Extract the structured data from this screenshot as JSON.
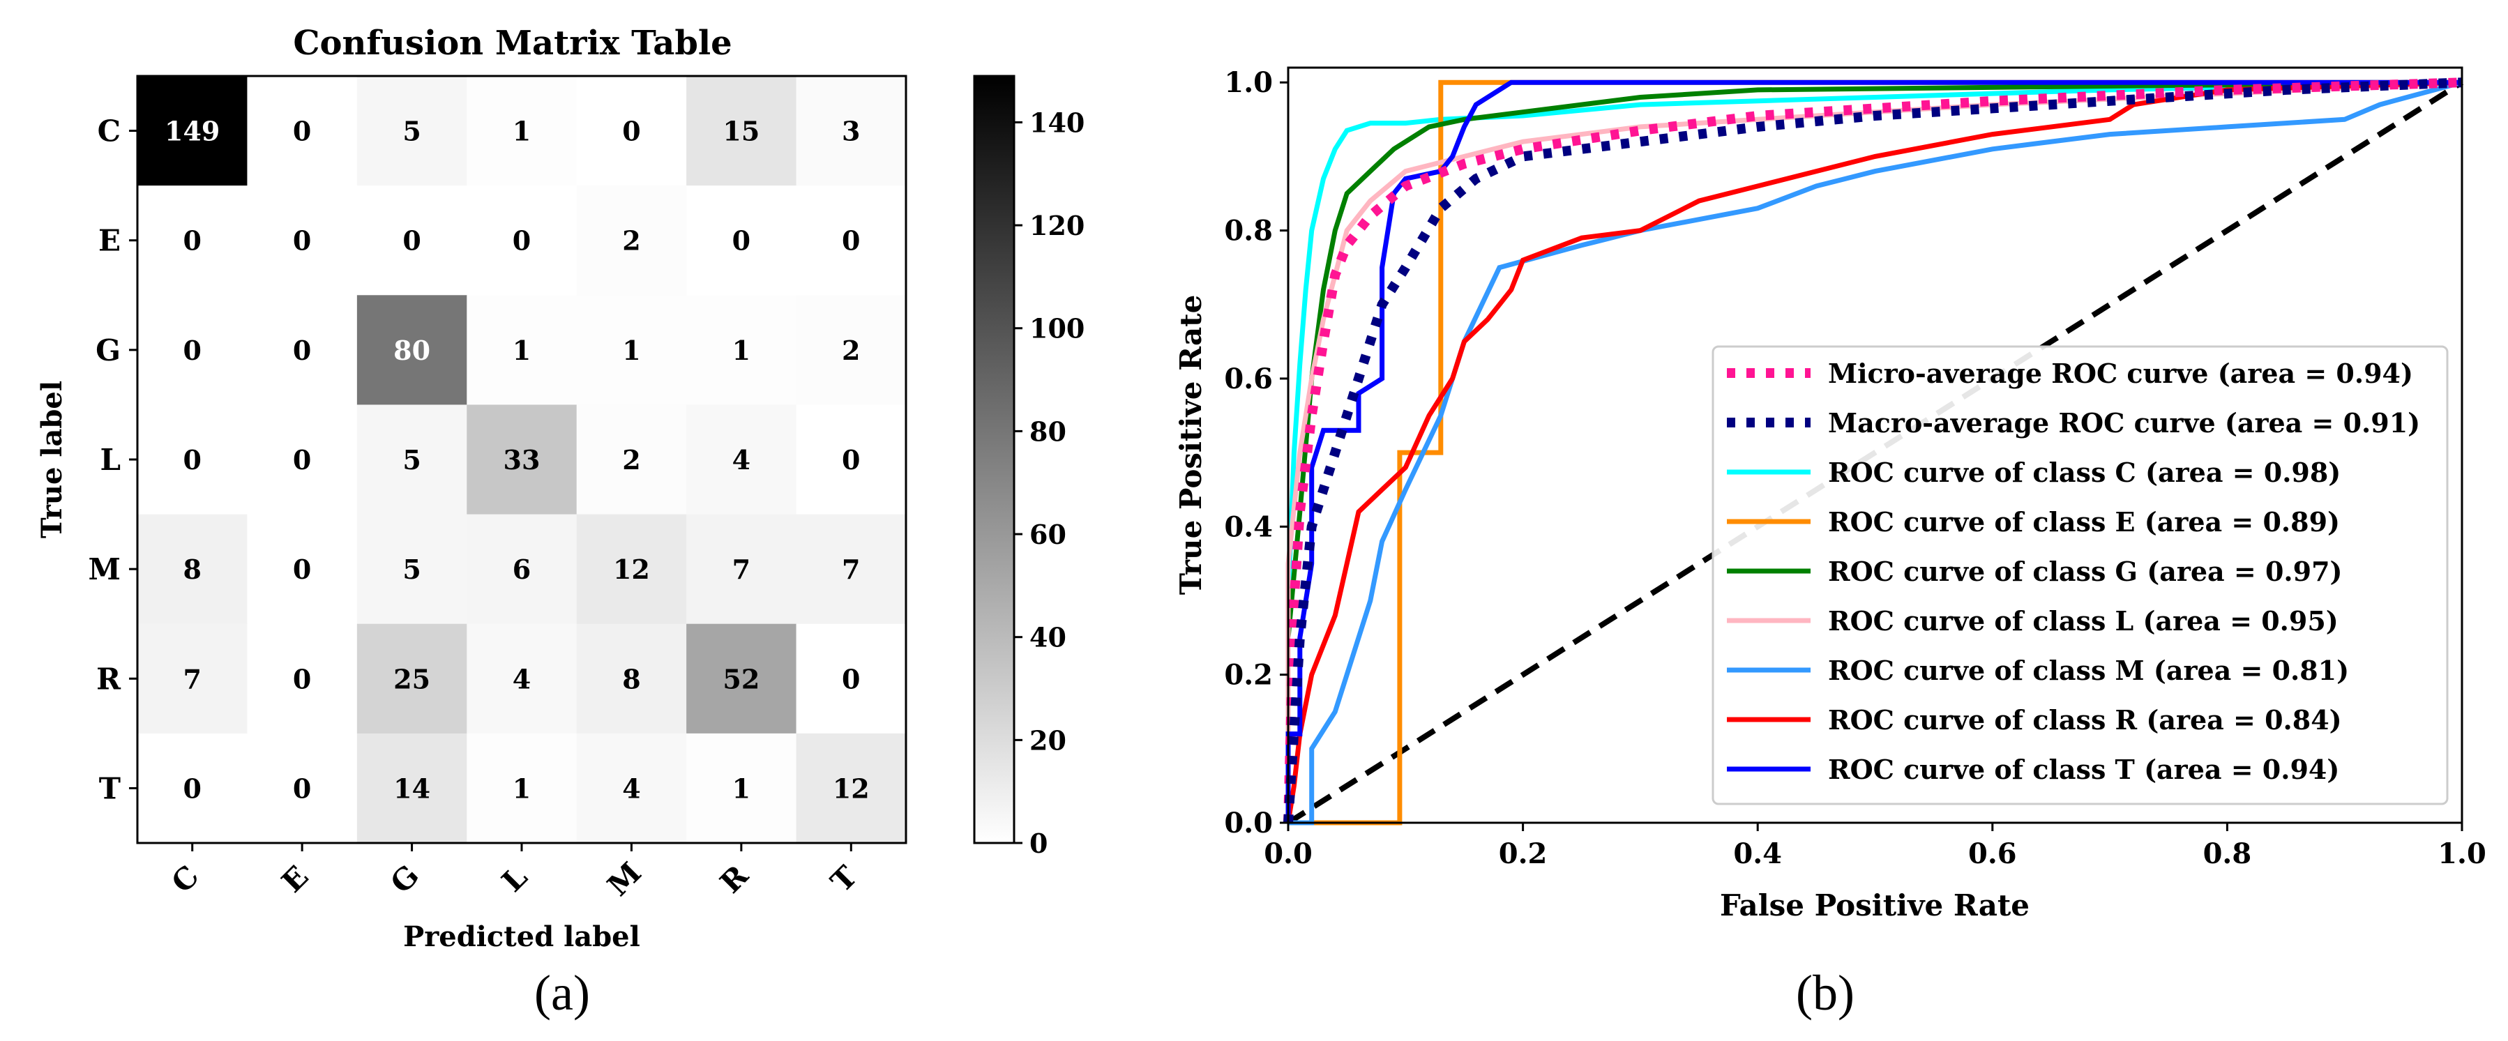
{
  "chart_data": [
    {
      "type": "heatmap",
      "title": "Confusion Matrix Table",
      "xlabel": "Predicted label",
      "ylabel": "True label",
      "caption": "(a)",
      "x_labels": [
        "C",
        "E",
        "G",
        "L",
        "M",
        "R",
        "T"
      ],
      "y_labels": [
        "C",
        "E",
        "G",
        "L",
        "M",
        "R",
        "T"
      ],
      "matrix": [
        [
          149,
          0,
          5,
          1,
          0,
          15,
          3
        ],
        [
          0,
          0,
          0,
          0,
          2,
          0,
          0
        ],
        [
          0,
          0,
          80,
          1,
          1,
          1,
          2
        ],
        [
          0,
          0,
          5,
          33,
          2,
          4,
          0
        ],
        [
          8,
          0,
          5,
          6,
          12,
          7,
          7
        ],
        [
          7,
          0,
          25,
          4,
          8,
          52,
          0
        ],
        [
          0,
          0,
          14,
          1,
          4,
          1,
          12
        ]
      ],
      "colorbar": {
        "min": 0,
        "max": 149,
        "ticks": [
          0,
          20,
          40,
          60,
          80,
          100,
          120,
          140
        ]
      }
    },
    {
      "type": "line",
      "title": "",
      "xlabel": "False Positive Rate",
      "ylabel": "True Positive Rate",
      "caption": "(b)",
      "xlim": [
        0.0,
        1.0
      ],
      "ylim": [
        0.0,
        1.02
      ],
      "xticks": [
        "0.0",
        "0.2",
        "0.4",
        "0.6",
        "0.8",
        "1.0"
      ],
      "yticks": [
        "0.0",
        "0.2",
        "0.4",
        "0.6",
        "0.8",
        "1.0"
      ],
      "legend_position": "lower-right",
      "chance_line": {
        "color": "#000000",
        "style": "dashed",
        "points": [
          [
            0,
            0
          ],
          [
            1,
            1
          ]
        ]
      },
      "series": [
        {
          "name": "Micro-average ROC curve (area = 0.94)",
          "color": "#ff1493",
          "style": "dotted",
          "points": [
            [
              0,
              0
            ],
            [
              0.005,
              0.3
            ],
            [
              0.01,
              0.42
            ],
            [
              0.02,
              0.55
            ],
            [
              0.03,
              0.65
            ],
            [
              0.04,
              0.74
            ],
            [
              0.05,
              0.78
            ],
            [
              0.07,
              0.82
            ],
            [
              0.1,
              0.86
            ],
            [
              0.15,
              0.89
            ],
            [
              0.2,
              0.91
            ],
            [
              0.3,
              0.935
            ],
            [
              0.4,
              0.955
            ],
            [
              0.5,
              0.965
            ],
            [
              0.6,
              0.975
            ],
            [
              0.8,
              0.99
            ],
            [
              1,
              1
            ]
          ]
        },
        {
          "name": "Macro-average ROC curve (area = 0.91)",
          "color": "#000080",
          "style": "dotted",
          "points": [
            [
              0,
              0
            ],
            [
              0.01,
              0.25
            ],
            [
              0.02,
              0.4
            ],
            [
              0.04,
              0.5
            ],
            [
              0.06,
              0.6
            ],
            [
              0.08,
              0.7
            ],
            [
              0.1,
              0.75
            ],
            [
              0.13,
              0.83
            ],
            [
              0.16,
              0.87
            ],
            [
              0.2,
              0.9
            ],
            [
              0.3,
              0.92
            ],
            [
              0.4,
              0.94
            ],
            [
              0.5,
              0.955
            ],
            [
              0.6,
              0.965
            ],
            [
              0.7,
              0.975
            ],
            [
              0.85,
              0.99
            ],
            [
              1,
              1
            ]
          ]
        },
        {
          "name": "ROC curve of class C (area = 0.98)",
          "color": "#00ffff",
          "style": "solid",
          "points": [
            [
              0,
              0
            ],
            [
              0,
              0.3
            ],
            [
              0.005,
              0.5
            ],
            [
              0.01,
              0.62
            ],
            [
              0.015,
              0.72
            ],
            [
              0.02,
              0.8
            ],
            [
              0.03,
              0.87
            ],
            [
              0.04,
              0.91
            ],
            [
              0.05,
              0.935
            ],
            [
              0.07,
              0.945
            ],
            [
              0.1,
              0.945
            ],
            [
              0.13,
              0.95
            ],
            [
              0.2,
              0.955
            ],
            [
              0.3,
              0.97
            ],
            [
              0.5,
              0.98
            ],
            [
              0.7,
              0.99
            ],
            [
              1,
              1
            ]
          ]
        },
        {
          "name": "ROC curve of class E (area = 0.89)",
          "color": "#ff8c00",
          "style": "solid",
          "points": [
            [
              0,
              0
            ],
            [
              0.095,
              0
            ],
            [
              0.095,
              0.5
            ],
            [
              0.13,
              0.5
            ],
            [
              0.13,
              1
            ],
            [
              1,
              1
            ]
          ]
        },
        {
          "name": "ROC curve of class G (area = 0.97)",
          "color": "#008000",
          "style": "solid",
          "points": [
            [
              0,
              0
            ],
            [
              0,
              0.25
            ],
            [
              0.01,
              0.42
            ],
            [
              0.02,
              0.6
            ],
            [
              0.03,
              0.72
            ],
            [
              0.04,
              0.8
            ],
            [
              0.05,
              0.85
            ],
            [
              0.07,
              0.88
            ],
            [
              0.09,
              0.91
            ],
            [
              0.12,
              0.94
            ],
            [
              0.15,
              0.95
            ],
            [
              0.2,
              0.96
            ],
            [
              0.3,
              0.98
            ],
            [
              0.4,
              0.99
            ],
            [
              1,
              1
            ]
          ]
        },
        {
          "name": "ROC curve of class L (area = 0.95)",
          "color": "#ffb6c1",
          "style": "solid",
          "points": [
            [
              0,
              0
            ],
            [
              0,
              0.35
            ],
            [
              0.01,
              0.5
            ],
            [
              0.02,
              0.6
            ],
            [
              0.03,
              0.68
            ],
            [
              0.05,
              0.8
            ],
            [
              0.07,
              0.84
            ],
            [
              0.1,
              0.88
            ],
            [
              0.15,
              0.9
            ],
            [
              0.2,
              0.92
            ],
            [
              0.3,
              0.94
            ],
            [
              0.4,
              0.95
            ],
            [
              0.6,
              0.97
            ],
            [
              0.8,
              0.985
            ],
            [
              1,
              1
            ]
          ]
        },
        {
          "name": "ROC curve of class M (area = 0.81)",
          "color": "#3399ff",
          "style": "solid",
          "points": [
            [
              0,
              0
            ],
            [
              0.02,
              0
            ],
            [
              0.02,
              0.1
            ],
            [
              0.04,
              0.15
            ],
            [
              0.05,
              0.2
            ],
            [
              0.07,
              0.3
            ],
            [
              0.08,
              0.38
            ],
            [
              0.1,
              0.45
            ],
            [
              0.13,
              0.55
            ],
            [
              0.15,
              0.65
            ],
            [
              0.18,
              0.75
            ],
            [
              0.25,
              0.78
            ],
            [
              0.3,
              0.8
            ],
            [
              0.4,
              0.83
            ],
            [
              0.45,
              0.86
            ],
            [
              0.5,
              0.88
            ],
            [
              0.6,
              0.91
            ],
            [
              0.7,
              0.93
            ],
            [
              0.8,
              0.94
            ],
            [
              0.9,
              0.95
            ],
            [
              0.93,
              0.97
            ],
            [
              1,
              1
            ]
          ]
        },
        {
          "name": "ROC curve of class R (area = 0.84)",
          "color": "#ff0000",
          "style": "solid",
          "points": [
            [
              0,
              0
            ],
            [
              0.005,
              0.05
            ],
            [
              0.01,
              0.12
            ],
            [
              0.02,
              0.2
            ],
            [
              0.04,
              0.28
            ],
            [
              0.05,
              0.35
            ],
            [
              0.06,
              0.42
            ],
            [
              0.08,
              0.45
            ],
            [
              0.1,
              0.48
            ],
            [
              0.12,
              0.55
            ],
            [
              0.14,
              0.6
            ],
            [
              0.15,
              0.65
            ],
            [
              0.17,
              0.68
            ],
            [
              0.19,
              0.72
            ],
            [
              0.2,
              0.76
            ],
            [
              0.25,
              0.79
            ],
            [
              0.3,
              0.8
            ],
            [
              0.35,
              0.84
            ],
            [
              0.4,
              0.86
            ],
            [
              0.45,
              0.88
            ],
            [
              0.5,
              0.9
            ],
            [
              0.6,
              0.93
            ],
            [
              0.7,
              0.95
            ],
            [
              0.72,
              0.97
            ],
            [
              0.8,
              0.99
            ],
            [
              1,
              1
            ]
          ]
        },
        {
          "name": "ROC curve of class T (area = 0.94)",
          "color": "#0000ff",
          "style": "solid",
          "points": [
            [
              0,
              0
            ],
            [
              0,
              0.12
            ],
            [
              0.01,
              0.12
            ],
            [
              0.01,
              0.25
            ],
            [
              0.02,
              0.35
            ],
            [
              0.02,
              0.48
            ],
            [
              0.03,
              0.53
            ],
            [
              0.06,
              0.53
            ],
            [
              0.06,
              0.58
            ],
            [
              0.08,
              0.6
            ],
            [
              0.08,
              0.75
            ],
            [
              0.09,
              0.85
            ],
            [
              0.1,
              0.87
            ],
            [
              0.13,
              0.88
            ],
            [
              0.14,
              0.9
            ],
            [
              0.15,
              0.94
            ],
            [
              0.16,
              0.97
            ],
            [
              0.19,
              1
            ],
            [
              1,
              1
            ]
          ]
        }
      ]
    }
  ]
}
